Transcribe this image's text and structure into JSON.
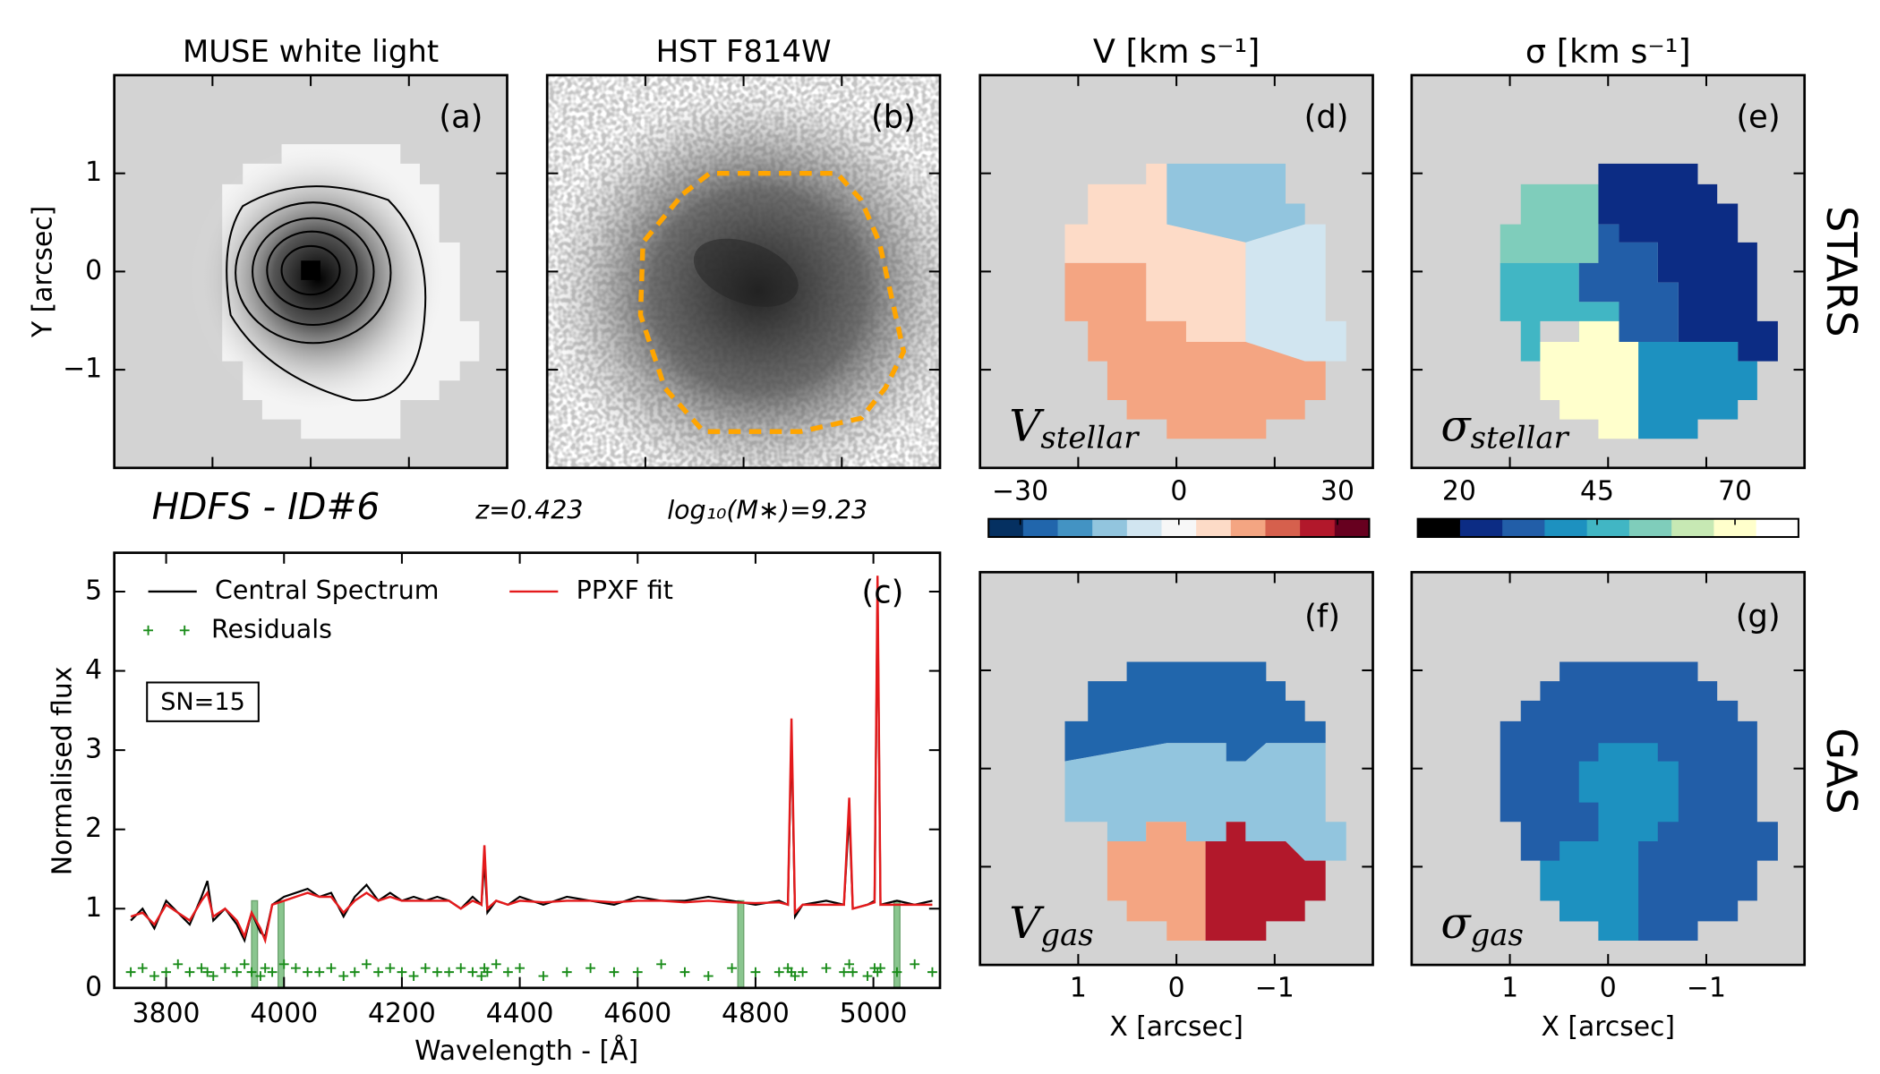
{
  "header": {
    "object": "HDFS - ID#6",
    "redshift": "z=0.423",
    "mass": "log₁₀(M∗)=9.23"
  },
  "row_labels": [
    "STARS",
    "GAS"
  ],
  "chart_data": [
    {
      "type": "image",
      "title": "MUSE white light",
      "annotation": "(a)",
      "ylabel": "Y [arcsec]",
      "ylim": [
        -2,
        2
      ],
      "yticks": [
        1,
        0,
        {
          "value": -1,
          "label": "−1"
        }
      ]
    },
    {
      "type": "image",
      "title": "HST F814W",
      "annotation": "(b)"
    },
    {
      "type": "line",
      "annotation": "(c)",
      "xlabel": "Wavelength - [Å]",
      "ylabel": "Normalised flux",
      "textbox": "SN=15",
      "legend": "upper left",
      "xlim": [
        3712,
        5113
      ],
      "ylim": [
        0,
        5.49
      ],
      "xticks": [
        3800,
        4000,
        4200,
        4400,
        4600,
        4800,
        5000
      ],
      "yticks": [
        0,
        1,
        2,
        3,
        4,
        5
      ],
      "x": [
        3740,
        3760,
        3780,
        3800,
        3820,
        3840,
        3860,
        3870,
        3880,
        3900,
        3920,
        3933,
        3945,
        3960,
        3968,
        3980,
        4000,
        4020,
        4040,
        4060,
        4080,
        4101,
        4120,
        4140,
        4160,
        4180,
        4200,
        4220,
        4240,
        4260,
        4280,
        4300,
        4320,
        4335,
        4340,
        4345,
        4360,
        4380,
        4400,
        4440,
        4480,
        4520,
        4560,
        4600,
        4640,
        4680,
        4720,
        4760,
        4800,
        4840,
        4855,
        4861,
        4867,
        4880,
        4920,
        4950,
        4959,
        4965,
        4990,
        5002,
        5007,
        5012,
        5040,
        5070,
        5100
      ],
      "masked_regions": [
        [
          3945,
          3955
        ],
        [
          3990,
          4000
        ],
        [
          4770,
          4780
        ],
        [
          5035,
          5045
        ]
      ],
      "masked_color": "#5aae61",
      "series": [
        {
          "name": "Central Spectrum",
          "color": "#000000",
          "marker": "line",
          "values": [
            0.85,
            1.0,
            0.75,
            1.1,
            0.95,
            0.8,
            1.15,
            1.35,
            0.85,
            1.0,
            0.8,
            0.6,
            0.95,
            0.7,
            0.65,
            1.05,
            1.15,
            1.2,
            1.25,
            1.15,
            1.2,
            0.9,
            1.15,
            1.3,
            1.1,
            1.2,
            1.1,
            1.15,
            1.1,
            1.15,
            1.1,
            1.0,
            1.15,
            1.05,
            1.6,
            0.95,
            1.1,
            1.05,
            1.15,
            1.05,
            1.15,
            1.1,
            1.05,
            1.15,
            1.1,
            1.1,
            1.15,
            1.1,
            1.05,
            1.1,
            1.05,
            3.2,
            0.9,
            1.05,
            1.1,
            1.05,
            2.2,
            1.0,
            1.05,
            1.1,
            5.0,
            1.05,
            1.1,
            1.05,
            1.1
          ]
        },
        {
          "name": "PPXF fit",
          "color": "#e41a1c",
          "marker": "line",
          "values": [
            0.9,
            0.95,
            0.8,
            1.05,
            0.95,
            0.85,
            1.1,
            1.2,
            0.9,
            1.0,
            0.85,
            0.65,
            0.95,
            0.75,
            0.6,
            1.05,
            1.1,
            1.15,
            1.2,
            1.15,
            1.15,
            0.95,
            1.1,
            1.2,
            1.1,
            1.15,
            1.1,
            1.1,
            1.1,
            1.1,
            1.1,
            1.0,
            1.1,
            1.05,
            1.8,
            1.0,
            1.1,
            1.05,
            1.1,
            1.08,
            1.1,
            1.1,
            1.08,
            1.1,
            1.1,
            1.08,
            1.1,
            1.08,
            1.07,
            1.08,
            1.05,
            3.4,
            0.95,
            1.05,
            1.05,
            1.05,
            2.4,
            1.0,
            1.05,
            1.08,
            5.2,
            1.05,
            1.05,
            1.05,
            1.05
          ]
        },
        {
          "name": "Residuals",
          "color": "#1a8c1a",
          "marker": "plus",
          "values": [
            0.2,
            0.25,
            0.15,
            0.2,
            0.3,
            0.2,
            0.25,
            0.2,
            0.15,
            0.25,
            0.2,
            0.3,
            0.2,
            0.15,
            0.25,
            0.2,
            0.3,
            0.25,
            0.2,
            0.2,
            0.25,
            0.15,
            0.2,
            0.3,
            0.2,
            0.25,
            0.2,
            0.15,
            0.25,
            0.2,
            0.2,
            0.25,
            0.2,
            0.15,
            0.25,
            0.2,
            0.3,
            0.2,
            0.25,
            0.15,
            0.2,
            0.25,
            0.2,
            0.2,
            0.3,
            0.2,
            0.15,
            0.25,
            0.2,
            0.2,
            0.25,
            0.2,
            0.15,
            0.2,
            0.25,
            0.2,
            0.3,
            0.2,
            0.15,
            0.25,
            0.2,
            0.25,
            0.2,
            0.3,
            0.2
          ]
        }
      ]
    },
    {
      "type": "image",
      "title": "V [km s⁻¹]",
      "annotation": "(d)",
      "label": {
        "symbol": "V",
        "subscript": "stellar"
      },
      "colorbar": {
        "clim": [
          -36,
          36
        ],
        "ticks": [
          {
            "value": -30,
            "label": "−30"
          },
          0,
          30
        ],
        "colors": [
          "#053061",
          "#2166ac",
          "#4393c3",
          "#92c5de",
          "#d1e5f0",
          "#f7f7f7",
          "#fddbc7",
          "#f4a582",
          "#d6604d",
          "#b2182b",
          "#67001f"
        ]
      }
    },
    {
      "type": "image",
      "title": "σ [km s⁻¹]",
      "annotation": "(e)",
      "label": {
        "symbol": "σ",
        "subscript": "stellar"
      },
      "colorbar": {
        "clim": [
          12.5,
          81.5
        ],
        "ticks": [
          20,
          45,
          70
        ],
        "colors": [
          "#000000",
          "#0c2c84",
          "#225ea8",
          "#1d91c0",
          "#41b6c4",
          "#7fcdbb",
          "#c7e9b4",
          "#ffffcc",
          "#ffffff"
        ]
      }
    },
    {
      "type": "image",
      "annotation": "(f)",
      "label": {
        "symbol": "V",
        "subscript": "gas"
      },
      "xlabel": "X [arcsec]",
      "xlim": [
        2,
        -2
      ],
      "xticks": [
        1,
        0,
        {
          "value": -1,
          "label": "−1"
        }
      ]
    },
    {
      "type": "image",
      "annotation": "(g)",
      "label": {
        "symbol": "σ",
        "subscript": "gas"
      },
      "xlabel": "X [arcsec]",
      "xlim": [
        2,
        -2
      ],
      "xticks": [
        1,
        0,
        {
          "value": -1,
          "label": "−1"
        }
      ]
    }
  ]
}
